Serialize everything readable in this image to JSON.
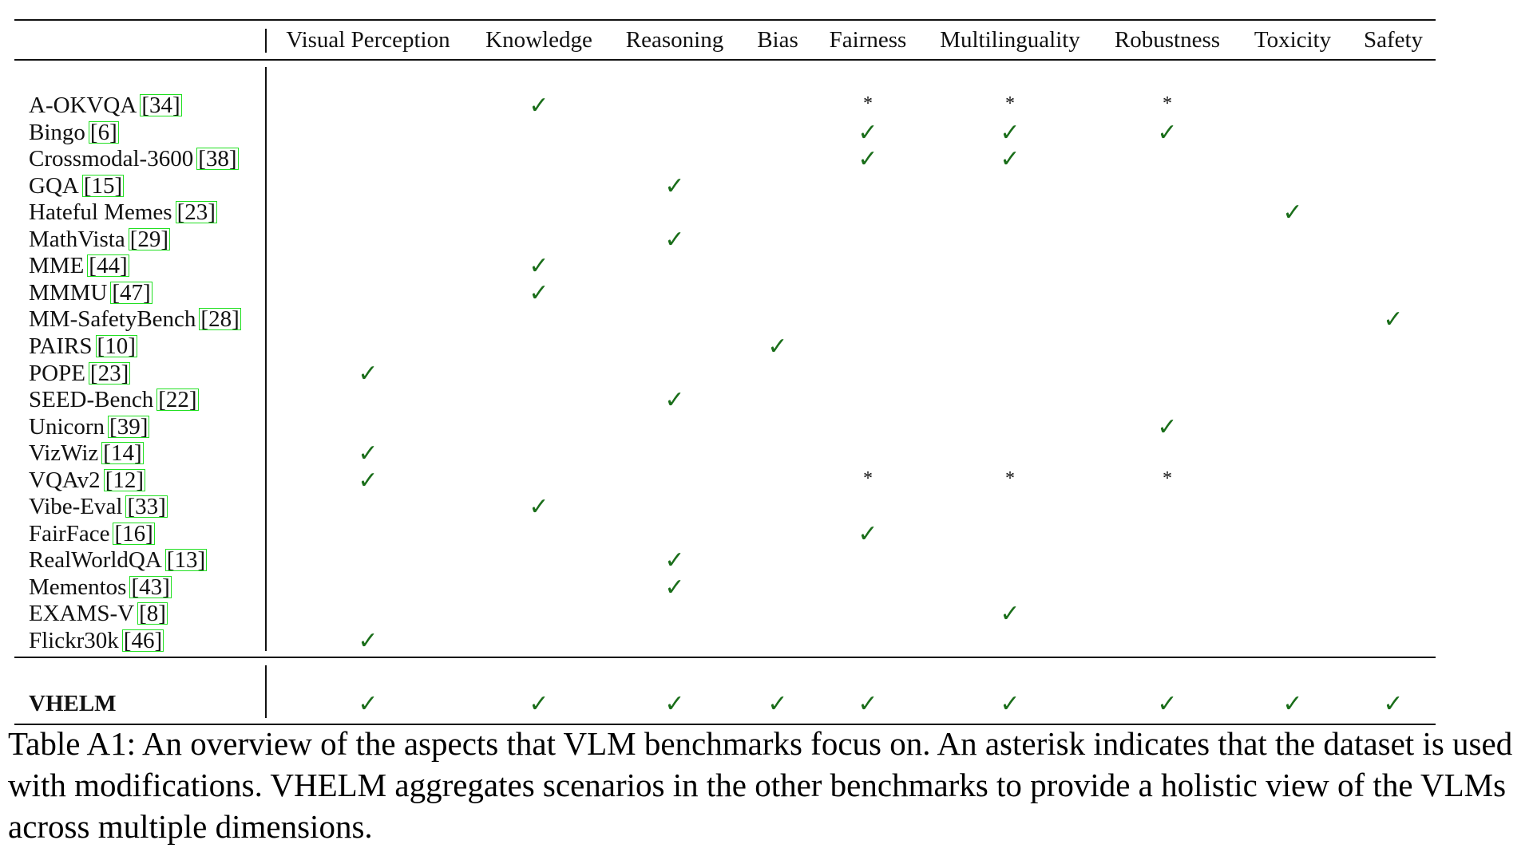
{
  "columns": [
    "Visual Perception",
    "Knowledge",
    "Reasoning",
    "Bias",
    "Fairness",
    "Multilinguality",
    "Robustness",
    "Toxicity",
    "Safety"
  ],
  "symbols": {
    "check": "✓",
    "star": "*",
    "empty": ""
  },
  "colors": {
    "check": "#1a6e1a",
    "citation_box": "#22e022",
    "text": "#111111"
  },
  "rows": [
    {
      "name": "A-OKVQA",
      "cite": "[34]",
      "marks": [
        "empty",
        "check",
        "empty",
        "empty",
        "star",
        "star",
        "star",
        "empty",
        "empty"
      ]
    },
    {
      "name": "Bingo",
      "cite": "[6]",
      "marks": [
        "empty",
        "empty",
        "empty",
        "empty",
        "check",
        "check",
        "check",
        "empty",
        "empty"
      ]
    },
    {
      "name": "Crossmodal-3600",
      "cite": "[38]",
      "marks": [
        "empty",
        "empty",
        "empty",
        "empty",
        "check",
        "check",
        "empty",
        "empty",
        "empty"
      ]
    },
    {
      "name": "GQA",
      "cite": "[15]",
      "marks": [
        "empty",
        "empty",
        "check",
        "empty",
        "empty",
        "empty",
        "empty",
        "empty",
        "empty"
      ]
    },
    {
      "name": "Hateful Memes",
      "cite": "[23]",
      "marks": [
        "empty",
        "empty",
        "empty",
        "empty",
        "empty",
        "empty",
        "empty",
        "check",
        "empty"
      ]
    },
    {
      "name": "MathVista",
      "cite": "[29]",
      "marks": [
        "empty",
        "empty",
        "check",
        "empty",
        "empty",
        "empty",
        "empty",
        "empty",
        "empty"
      ]
    },
    {
      "name": "MME",
      "cite": "[44]",
      "marks": [
        "empty",
        "check",
        "empty",
        "empty",
        "empty",
        "empty",
        "empty",
        "empty",
        "empty"
      ]
    },
    {
      "name": "MMMU",
      "cite": "[47]",
      "marks": [
        "empty",
        "check",
        "empty",
        "empty",
        "empty",
        "empty",
        "empty",
        "empty",
        "empty"
      ]
    },
    {
      "name": "MM-SafetyBench",
      "cite": "[28]",
      "marks": [
        "empty",
        "empty",
        "empty",
        "empty",
        "empty",
        "empty",
        "empty",
        "empty",
        "check"
      ]
    },
    {
      "name": "PAIRS",
      "cite": "[10]",
      "marks": [
        "empty",
        "empty",
        "empty",
        "check",
        "empty",
        "empty",
        "empty",
        "empty",
        "empty"
      ]
    },
    {
      "name": "POPE",
      "cite": "[23]",
      "marks": [
        "check",
        "empty",
        "empty",
        "empty",
        "empty",
        "empty",
        "empty",
        "empty",
        "empty"
      ]
    },
    {
      "name": "SEED-Bench",
      "cite": "[22]",
      "marks": [
        "empty",
        "empty",
        "check",
        "empty",
        "empty",
        "empty",
        "empty",
        "empty",
        "empty"
      ]
    },
    {
      "name": "Unicorn",
      "cite": "[39]",
      "marks": [
        "empty",
        "empty",
        "empty",
        "empty",
        "empty",
        "empty",
        "check",
        "empty",
        "empty"
      ]
    },
    {
      "name": "VizWiz",
      "cite": "[14]",
      "marks": [
        "check",
        "empty",
        "empty",
        "empty",
        "empty",
        "empty",
        "empty",
        "empty",
        "empty"
      ]
    },
    {
      "name": "VQAv2",
      "cite": "[12]",
      "marks": [
        "check",
        "empty",
        "empty",
        "empty",
        "star",
        "star",
        "star",
        "empty",
        "empty"
      ]
    },
    {
      "name": "Vibe-Eval",
      "cite": "[33]",
      "marks": [
        "empty",
        "check",
        "empty",
        "empty",
        "empty",
        "empty",
        "empty",
        "empty",
        "empty"
      ]
    },
    {
      "name": "FairFace",
      "cite": "[16]",
      "marks": [
        "empty",
        "empty",
        "empty",
        "empty",
        "check",
        "empty",
        "empty",
        "empty",
        "empty"
      ]
    },
    {
      "name": "RealWorldQA",
      "cite": "[13]",
      "marks": [
        "empty",
        "empty",
        "check",
        "empty",
        "empty",
        "empty",
        "empty",
        "empty",
        "empty"
      ]
    },
    {
      "name": "Mementos",
      "cite": "[43]",
      "marks": [
        "empty",
        "empty",
        "check",
        "empty",
        "empty",
        "empty",
        "empty",
        "empty",
        "empty"
      ]
    },
    {
      "name": "EXAMS-V",
      "cite": "[8]",
      "marks": [
        "empty",
        "empty",
        "empty",
        "empty",
        "empty",
        "check",
        "empty",
        "empty",
        "empty"
      ]
    },
    {
      "name": "Flickr30k",
      "cite": "[46]",
      "marks": [
        "check",
        "empty",
        "empty",
        "empty",
        "empty",
        "empty",
        "empty",
        "empty",
        "empty"
      ]
    }
  ],
  "summary_row": {
    "name": "VHELM",
    "marks": [
      "check",
      "check",
      "check",
      "check",
      "check",
      "check",
      "check",
      "check",
      "check"
    ]
  },
  "caption": "Table A1: An overview of the aspects that VLM benchmarks focus on. An asterisk indicates that the dataset is used with modifications. VHELM aggregates scenarios in the other benchmarks to provide a holistic view of the VLMs across multiple dimensions."
}
